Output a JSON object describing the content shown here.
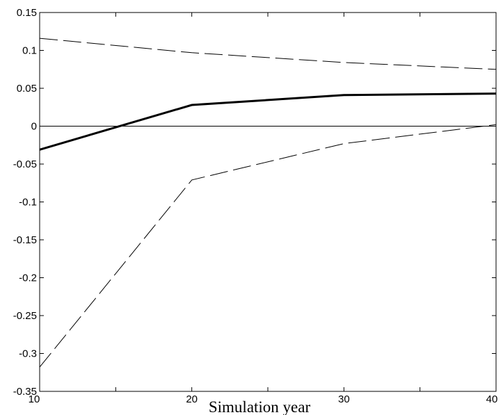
{
  "chart_data": {
    "type": "line",
    "xlabel": "Simulation year",
    "ylabel": "",
    "title": "",
    "xlim": [
      10,
      40
    ],
    "ylim": [
      -0.35,
      0.15
    ],
    "x_ticks": [
      "10",
      "20",
      "30",
      "40"
    ],
    "y_ticks": [
      "0.15",
      "0.1",
      "0.05",
      "0",
      "-0.05",
      "-0.1",
      "-0.15",
      "-0.2",
      "-0.25",
      "-0.3",
      "-0.35"
    ],
    "x": [
      10,
      20,
      30,
      40
    ],
    "series": [
      {
        "values": [
          -0.031,
          0.028,
          0.041,
          0.043
        ],
        "style": "solid-thick"
      },
      {
        "values": [
          0.116,
          0.097,
          0.084,
          0.075
        ],
        "style": "dashed"
      },
      {
        "values": [
          -0.318,
          -0.071,
          -0.023,
          0.002
        ],
        "style": "dashed"
      }
    ],
    "reference_line": 0,
    "grid": false,
    "legend": "none"
  }
}
